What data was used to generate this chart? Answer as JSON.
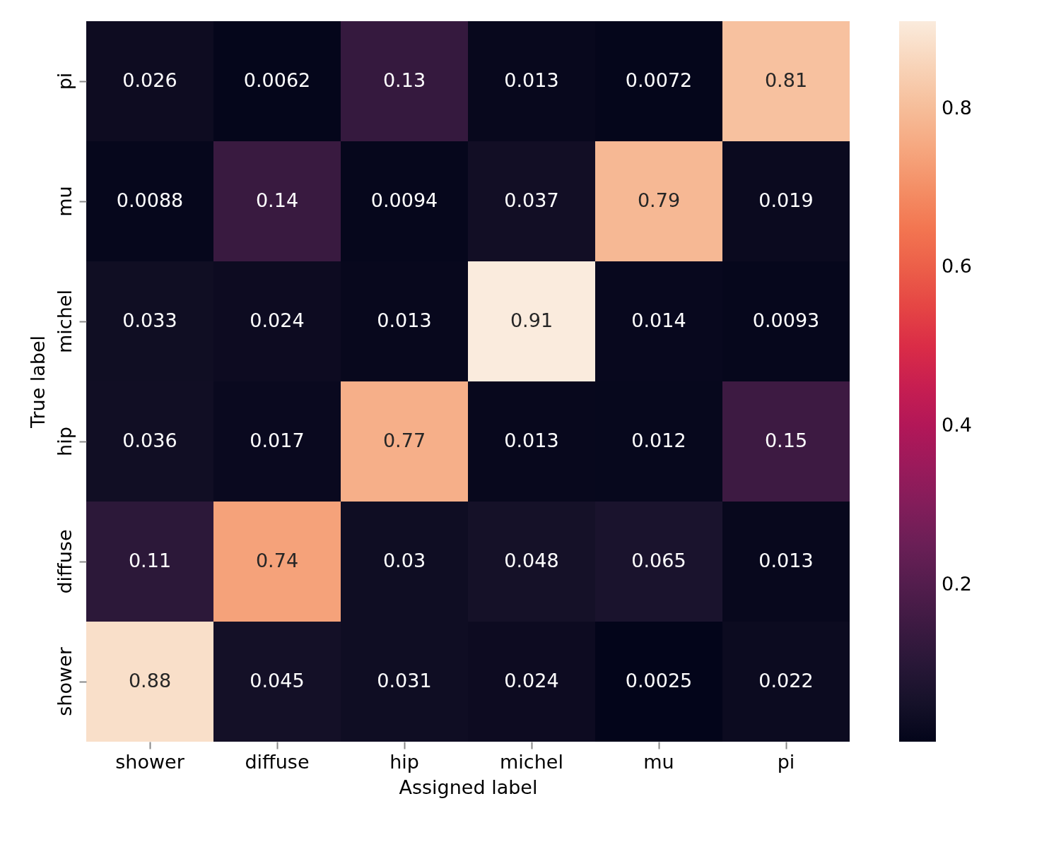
{
  "chart_data": {
    "type": "heatmap",
    "xlabel": "Assigned label",
    "ylabel": "True label",
    "categories": [
      "shower",
      "diffuse",
      "hip",
      "michel",
      "mu",
      "pi"
    ],
    "y_categories": [
      "pi",
      "mu",
      "michel",
      "hip",
      "diffuse",
      "shower"
    ],
    "cells": [
      [
        0.026,
        0.0062,
        0.13,
        0.013,
        0.0072,
        0.81
      ],
      [
        0.0088,
        0.14,
        0.0094,
        0.037,
        0.79,
        0.019
      ],
      [
        0.033,
        0.024,
        0.013,
        0.91,
        0.014,
        0.0093
      ],
      [
        0.036,
        0.017,
        0.77,
        0.013,
        0.012,
        0.15
      ],
      [
        0.11,
        0.74,
        0.03,
        0.048,
        0.065,
        0.013
      ],
      [
        0.88,
        0.045,
        0.031,
        0.024,
        0.0025,
        0.022
      ]
    ],
    "data_labels": true,
    "clim": [
      0.0025,
      0.91
    ],
    "cticks": [
      0.2,
      0.4,
      0.6,
      0.8
    ]
  }
}
